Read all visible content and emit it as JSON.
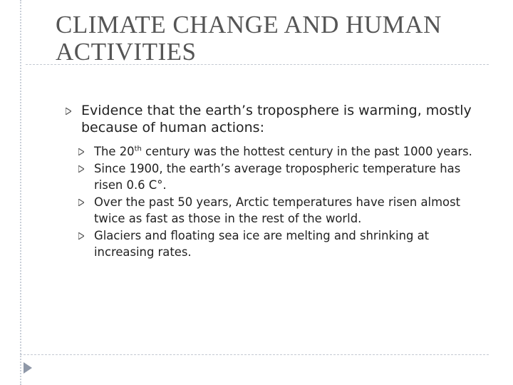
{
  "title": {
    "line1": "CLIMATE CHANGE AND HUMAN",
    "line2": "ACTIVITIES"
  },
  "main_bullet": "Evidence that the earth’s troposphere is warming, mostly because of human actions:",
  "sub_bullets": [
    {
      "before": "The 20",
      "sup": "th",
      "after": " century was the hottest century in the past 1000 years."
    },
    {
      "text": "Since 1900, the earth’s average tropospheric temperature has risen 0.6 C°."
    },
    {
      "text": "Over the past 50 years, Arctic temperatures have risen almost twice as fast as those in the rest of the world."
    },
    {
      "text": "Glaciers and floating sea ice are melting and shrinking at increasing rates."
    }
  ],
  "icons": {
    "bullet": "triangle-arrow-icon",
    "navigation": "navigation-arrow-icon"
  }
}
